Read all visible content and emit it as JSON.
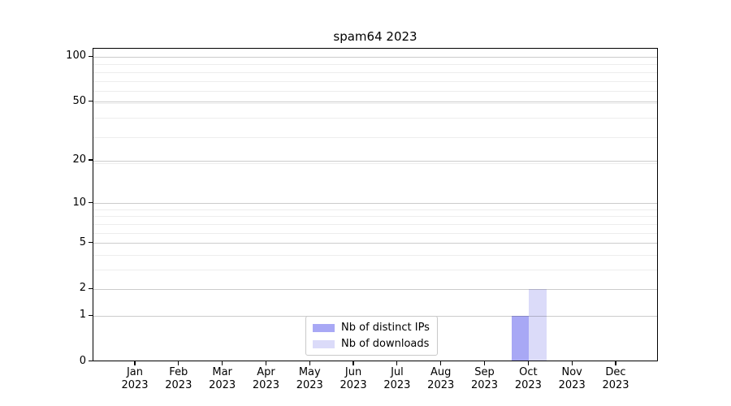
{
  "chart_data": {
    "type": "bar",
    "title": "spam64 2023",
    "categories": [
      "Jan",
      "Feb",
      "Mar",
      "Apr",
      "May",
      "Jun",
      "Jul",
      "Aug",
      "Sep",
      "Oct",
      "Nov",
      "Dec"
    ],
    "category_year": "2023",
    "series": [
      {
        "name": "Nb of distinct IPs",
        "color": "#a8a8f5",
        "values": [
          0,
          0,
          0,
          0,
          0,
          0,
          0,
          0,
          0,
          1,
          0,
          0
        ]
      },
      {
        "name": "Nb of downloads",
        "color": "#dbdbf9",
        "values": [
          0,
          0,
          0,
          0,
          0,
          0,
          0,
          0,
          0,
          2,
          0,
          0
        ]
      }
    ],
    "yticks": [
      0,
      1,
      2,
      5,
      10,
      20,
      50,
      100
    ],
    "minor_yticks": [
      3,
      4,
      6,
      7,
      8,
      9,
      19,
      29,
      39,
      49,
      59,
      69,
      79,
      89
    ],
    "scale": "log1p",
    "ylim": [
      0,
      113
    ],
    "xlabel": "",
    "ylabel": "",
    "grid": true,
    "legend_position": "lower center"
  }
}
